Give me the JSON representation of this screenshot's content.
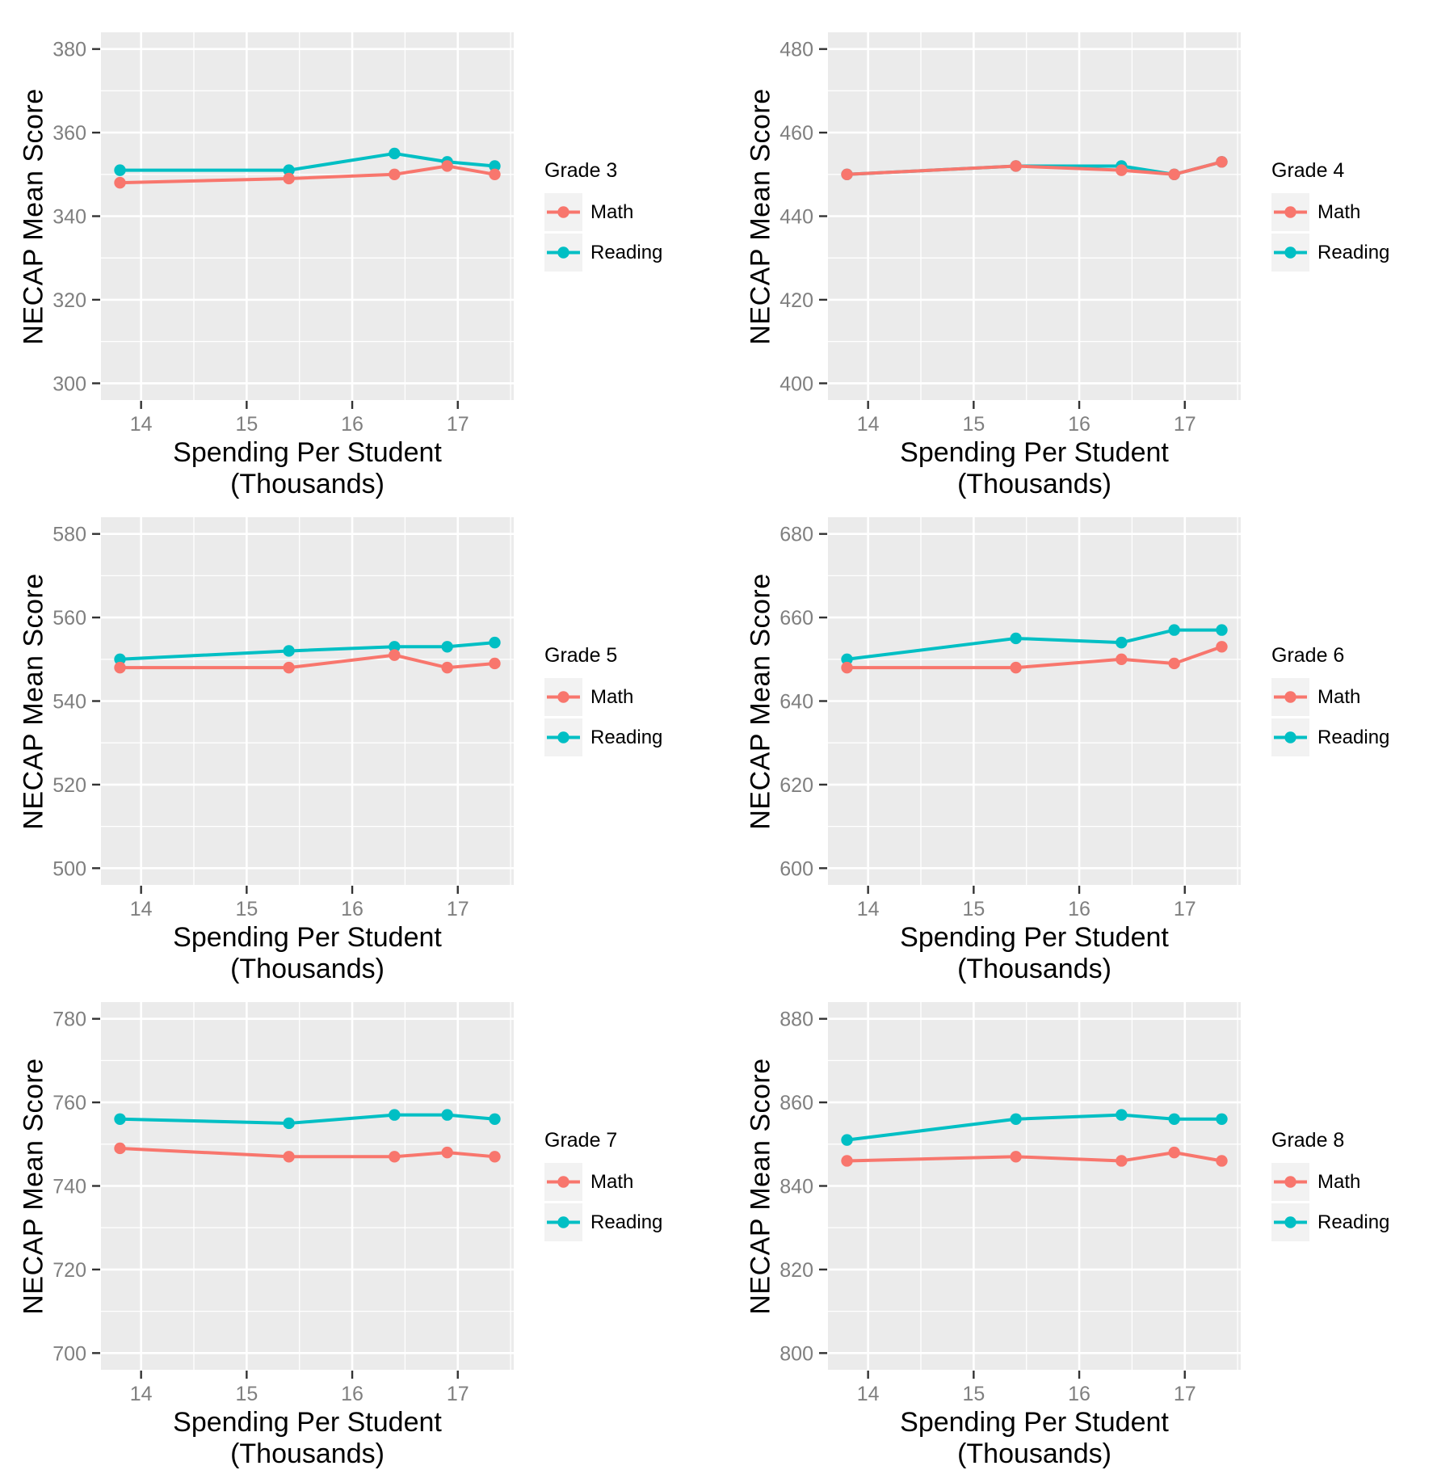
{
  "style": {
    "panel_bg": "#EBEBEB",
    "grid_color": "#FFFFFF",
    "tick_color": "#333333",
    "tick_label_color": "#7F7F7F",
    "key_bg": "#F2F2F2",
    "series_colors": {
      "Math": "#F8766D",
      "Reading": "#00BFC4"
    }
  },
  "chart_data": [
    {
      "type": "line",
      "legend_title": "Grade 3",
      "xlabel": "Spending Per Student (Thousands)",
      "ylabel": "NECAP Mean Score",
      "x": [
        13.8,
        15.4,
        16.4,
        16.9,
        17.35
      ],
      "series": [
        {
          "name": "Math",
          "values": [
            348,
            349,
            350,
            352,
            350
          ]
        },
        {
          "name": "Reading",
          "values": [
            351,
            351,
            355,
            353,
            352
          ]
        }
      ],
      "xticks": [
        14,
        15,
        16,
        17
      ],
      "x_minor": [
        14.5,
        15.5,
        16.5,
        17.5
      ],
      "yticks": [
        300,
        320,
        340,
        360,
        380
      ],
      "y_minor": [
        310,
        330,
        350,
        370
      ],
      "xlim": [
        13.62,
        17.53
      ],
      "ylim": [
        296,
        384
      ],
      "grid": true,
      "legend_position": "right"
    },
    {
      "type": "line",
      "legend_title": "Grade 4",
      "xlabel": "Spending Per Student (Thousands)",
      "ylabel": "NECAP Mean Score",
      "x": [
        13.8,
        15.4,
        16.4,
        16.9,
        17.35
      ],
      "series": [
        {
          "name": "Math",
          "values": [
            450,
            452,
            451,
            450,
            453
          ]
        },
        {
          "name": "Reading",
          "values": [
            450,
            452,
            452,
            450,
            453
          ]
        }
      ],
      "xticks": [
        14,
        15,
        16,
        17
      ],
      "x_minor": [
        14.5,
        15.5,
        16.5,
        17.5
      ],
      "yticks": [
        400,
        420,
        440,
        460,
        480
      ],
      "y_minor": [
        410,
        430,
        450,
        470
      ],
      "xlim": [
        13.62,
        17.53
      ],
      "ylim": [
        396,
        484
      ],
      "grid": true,
      "legend_position": "right"
    },
    {
      "type": "line",
      "legend_title": "Grade 5",
      "xlabel": "Spending Per Student (Thousands)",
      "ylabel": "NECAP Mean Score",
      "x": [
        13.8,
        15.4,
        16.4,
        16.9,
        17.35
      ],
      "series": [
        {
          "name": "Math",
          "values": [
            548,
            548,
            551,
            548,
            549
          ]
        },
        {
          "name": "Reading",
          "values": [
            550,
            552,
            553,
            553,
            554
          ]
        }
      ],
      "xticks": [
        14,
        15,
        16,
        17
      ],
      "x_minor": [
        14.5,
        15.5,
        16.5,
        17.5
      ],
      "yticks": [
        500,
        520,
        540,
        560,
        580
      ],
      "y_minor": [
        510,
        530,
        550,
        570
      ],
      "xlim": [
        13.62,
        17.53
      ],
      "ylim": [
        496,
        584
      ],
      "grid": true,
      "legend_position": "right"
    },
    {
      "type": "line",
      "legend_title": "Grade 6",
      "xlabel": "Spending Per Student (Thousands)",
      "ylabel": "NECAP Mean Score",
      "x": [
        13.8,
        15.4,
        16.4,
        16.9,
        17.35
      ],
      "series": [
        {
          "name": "Math",
          "values": [
            648,
            648,
            650,
            649,
            653
          ]
        },
        {
          "name": "Reading",
          "values": [
            650,
            655,
            654,
            657,
            657
          ]
        }
      ],
      "xticks": [
        14,
        15,
        16,
        17
      ],
      "x_minor": [
        14.5,
        15.5,
        16.5,
        17.5
      ],
      "yticks": [
        600,
        620,
        640,
        660,
        680
      ],
      "y_minor": [
        610,
        630,
        650,
        670
      ],
      "xlim": [
        13.62,
        17.53
      ],
      "ylim": [
        596,
        684
      ],
      "grid": true,
      "legend_position": "right"
    },
    {
      "type": "line",
      "legend_title": "Grade 7",
      "xlabel": "Spending Per Student (Thousands)",
      "ylabel": "NECAP Mean Score",
      "x": [
        13.8,
        15.4,
        16.4,
        16.9,
        17.35
      ],
      "series": [
        {
          "name": "Math",
          "values": [
            749,
            747,
            747,
            748,
            747
          ]
        },
        {
          "name": "Reading",
          "values": [
            756,
            755,
            757,
            757,
            756
          ]
        }
      ],
      "xticks": [
        14,
        15,
        16,
        17
      ],
      "x_minor": [
        14.5,
        15.5,
        16.5,
        17.5
      ],
      "yticks": [
        700,
        720,
        740,
        760,
        780
      ],
      "y_minor": [
        710,
        730,
        750,
        770
      ],
      "xlim": [
        13.62,
        17.53
      ],
      "ylim": [
        696,
        784
      ],
      "grid": true,
      "legend_position": "right"
    },
    {
      "type": "line",
      "legend_title": "Grade 8",
      "xlabel": "Spending Per Student (Thousands)",
      "ylabel": "NECAP Mean Score",
      "x": [
        13.8,
        15.4,
        16.4,
        16.9,
        17.35
      ],
      "series": [
        {
          "name": "Math",
          "values": [
            846,
            847,
            846,
            848,
            846
          ]
        },
        {
          "name": "Reading",
          "values": [
            851,
            856,
            857,
            856,
            856
          ]
        }
      ],
      "xticks": [
        14,
        15,
        16,
        17
      ],
      "x_minor": [
        14.5,
        15.5,
        16.5,
        17.5
      ],
      "yticks": [
        800,
        820,
        840,
        860,
        880
      ],
      "y_minor": [
        810,
        830,
        850,
        870
      ],
      "xlim": [
        13.62,
        17.53
      ],
      "ylim": [
        796,
        884
      ],
      "grid": true,
      "legend_position": "right"
    }
  ]
}
